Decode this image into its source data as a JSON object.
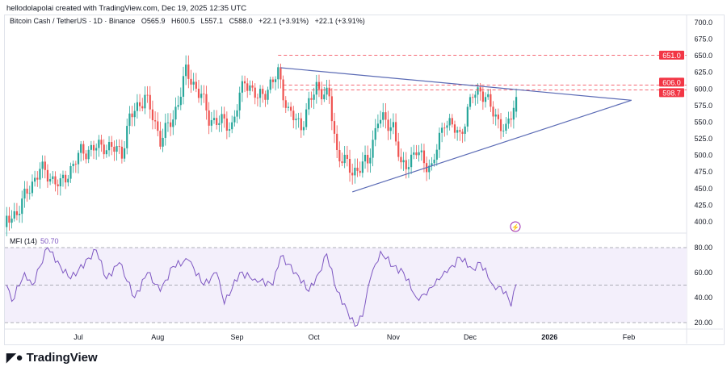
{
  "credit": "hellodolapolai created with TradingView.com, Dec 19, 2025 12:35 UTC",
  "legend": {
    "symbol": "Bitcoin Cash / TetherUS · 1D · Binance",
    "open": "O565.9",
    "high": "H600.5",
    "low": "L557.1",
    "close": "C588.0",
    "change1": "+22.1 (+3.91%)",
    "change2": "+22.1 (+3.91%)"
  },
  "mfi": {
    "label": "MFI (14)",
    "value": "50.70"
  },
  "brand": "TradingView",
  "colors": {
    "up": "#26a69a",
    "down": "#ef5350",
    "trendline": "#5b6bb5",
    "level": "#f23645",
    "mfi": "#7e57c2",
    "mfi_band": "#f3effb"
  },
  "chart_data": [
    {
      "type": "candlestick",
      "ylim": [
        390,
        710
      ],
      "y_ticks": [
        "700.0",
        "675.0",
        "650.0",
        "625.0",
        "600.0",
        "575.0",
        "550.0",
        "525.0",
        "500.0",
        "475.0",
        "450.0",
        "425.0",
        "400.0"
      ],
      "x_ticks": [
        {
          "label": "Jul",
          "date": "2025-07-01"
        },
        {
          "label": "Aug",
          "date": "2025-08-01"
        },
        {
          "label": "Sep",
          "date": "2025-09-01"
        },
        {
          "label": "Oct",
          "date": "2025-10-01"
        },
        {
          "label": "Nov",
          "date": "2025-11-01"
        },
        {
          "label": "Dec",
          "date": "2025-12-01"
        },
        {
          "label": "2026",
          "date": "2026-01-01"
        },
        {
          "label": "Feb",
          "date": "2026-02-01"
        }
      ],
      "approx_close_path": [
        [
          "2025-06-03",
          400
        ],
        [
          "2025-06-07",
          415
        ],
        [
          "2025-06-16",
          480
        ],
        [
          "2025-06-24",
          455
        ],
        [
          "2025-07-02",
          505
        ],
        [
          "2025-07-11",
          515
        ],
        [
          "2025-07-18",
          505
        ],
        [
          "2025-07-21",
          555
        ],
        [
          "2025-07-27",
          590
        ],
        [
          "2025-08-02",
          525
        ],
        [
          "2025-08-07",
          555
        ],
        [
          "2025-08-12",
          625
        ],
        [
          "2025-08-18",
          590
        ],
        [
          "2025-08-21",
          555
        ],
        [
          "2025-08-26",
          550
        ],
        [
          "2025-08-30",
          545
        ],
        [
          "2025-09-04",
          615
        ],
        [
          "2025-09-09",
          585
        ],
        [
          "2025-09-15",
          610
        ],
        [
          "2025-09-17",
          625
        ],
        [
          "2025-09-21",
          565
        ],
        [
          "2025-09-26",
          545
        ],
        [
          "2025-10-02",
          605
        ],
        [
          "2025-10-07",
          585
        ],
        [
          "2025-10-10",
          505
        ],
        [
          "2025-10-16",
          475
        ],
        [
          "2025-10-22",
          490
        ],
        [
          "2025-10-26",
          555
        ],
        [
          "2025-11-01",
          545
        ],
        [
          "2025-11-04",
          480
        ],
        [
          "2025-11-10",
          505
        ],
        [
          "2025-11-16",
          480
        ],
        [
          "2025-11-21",
          555
        ],
        [
          "2025-11-27",
          530
        ],
        [
          "2025-12-02",
          590
        ],
        [
          "2025-12-05",
          600
        ],
        [
          "2025-12-10",
          565
        ],
        [
          "2025-12-15",
          535
        ],
        [
          "2025-12-19",
          588
        ]
      ],
      "last_candle": {
        "open": 565.9,
        "high": 600.5,
        "low": 557.1,
        "close": 588.0
      },
      "trendlines": [
        [
          [
            "2025-09-18",
            632
          ],
          [
            "2026-02-02",
            583
          ]
        ],
        [
          [
            "2025-10-16",
            445
          ],
          [
            "2026-02-02",
            583
          ]
        ]
      ],
      "horizontal_levels": [
        {
          "price": 651.0,
          "label": "651.0",
          "from": "2025-09-17"
        },
        {
          "price": 606.0,
          "label": "606.0",
          "from": "2025-09-19"
        },
        {
          "price": 598.7,
          "label": "598.7",
          "from": "2025-09-19"
        }
      ]
    },
    {
      "type": "line",
      "name": "MFI (14)",
      "ylim": [
        10,
        85
      ],
      "band": [
        20,
        80
      ],
      "midline": 50,
      "y_ticks": [
        "80.00",
        "60.00",
        "40.00",
        "20.00"
      ],
      "values": [
        [
          "2025-06-03",
          50
        ],
        [
          "2025-06-05",
          37
        ],
        [
          "2025-06-10",
          60
        ],
        [
          "2025-06-13",
          50
        ],
        [
          "2025-06-19",
          80
        ],
        [
          "2025-06-24",
          65
        ],
        [
          "2025-06-28",
          55
        ],
        [
          "2025-07-08",
          78
        ],
        [
          "2025-07-12",
          55
        ],
        [
          "2025-07-17",
          68
        ],
        [
          "2025-07-23",
          40
        ],
        [
          "2025-07-28",
          60
        ],
        [
          "2025-08-02",
          45
        ],
        [
          "2025-08-07",
          65
        ],
        [
          "2025-08-13",
          70
        ],
        [
          "2025-08-19",
          50
        ],
        [
          "2025-08-24",
          60
        ],
        [
          "2025-08-27",
          35
        ],
        [
          "2025-09-02",
          60
        ],
        [
          "2025-09-08",
          55
        ],
        [
          "2025-09-15",
          50
        ],
        [
          "2025-09-18",
          73
        ],
        [
          "2025-09-24",
          60
        ],
        [
          "2025-09-29",
          45
        ],
        [
          "2025-10-03",
          60
        ],
        [
          "2025-10-06",
          75
        ],
        [
          "2025-10-10",
          45
        ],
        [
          "2025-10-14",
          30
        ],
        [
          "2025-10-17",
          17
        ],
        [
          "2025-10-20",
          25
        ],
        [
          "2025-10-23",
          55
        ],
        [
          "2025-10-27",
          77
        ],
        [
          "2025-11-01",
          65
        ],
        [
          "2025-11-05",
          60
        ],
        [
          "2025-11-10",
          40
        ],
        [
          "2025-11-14",
          42
        ],
        [
          "2025-11-18",
          55
        ],
        [
          "2025-11-22",
          60
        ],
        [
          "2025-11-27",
          72
        ],
        [
          "2025-12-02",
          63
        ],
        [
          "2025-12-05",
          68
        ],
        [
          "2025-12-10",
          50
        ],
        [
          "2025-12-15",
          45
        ],
        [
          "2025-12-17",
          33
        ],
        [
          "2025-12-19",
          50.7
        ]
      ]
    }
  ]
}
